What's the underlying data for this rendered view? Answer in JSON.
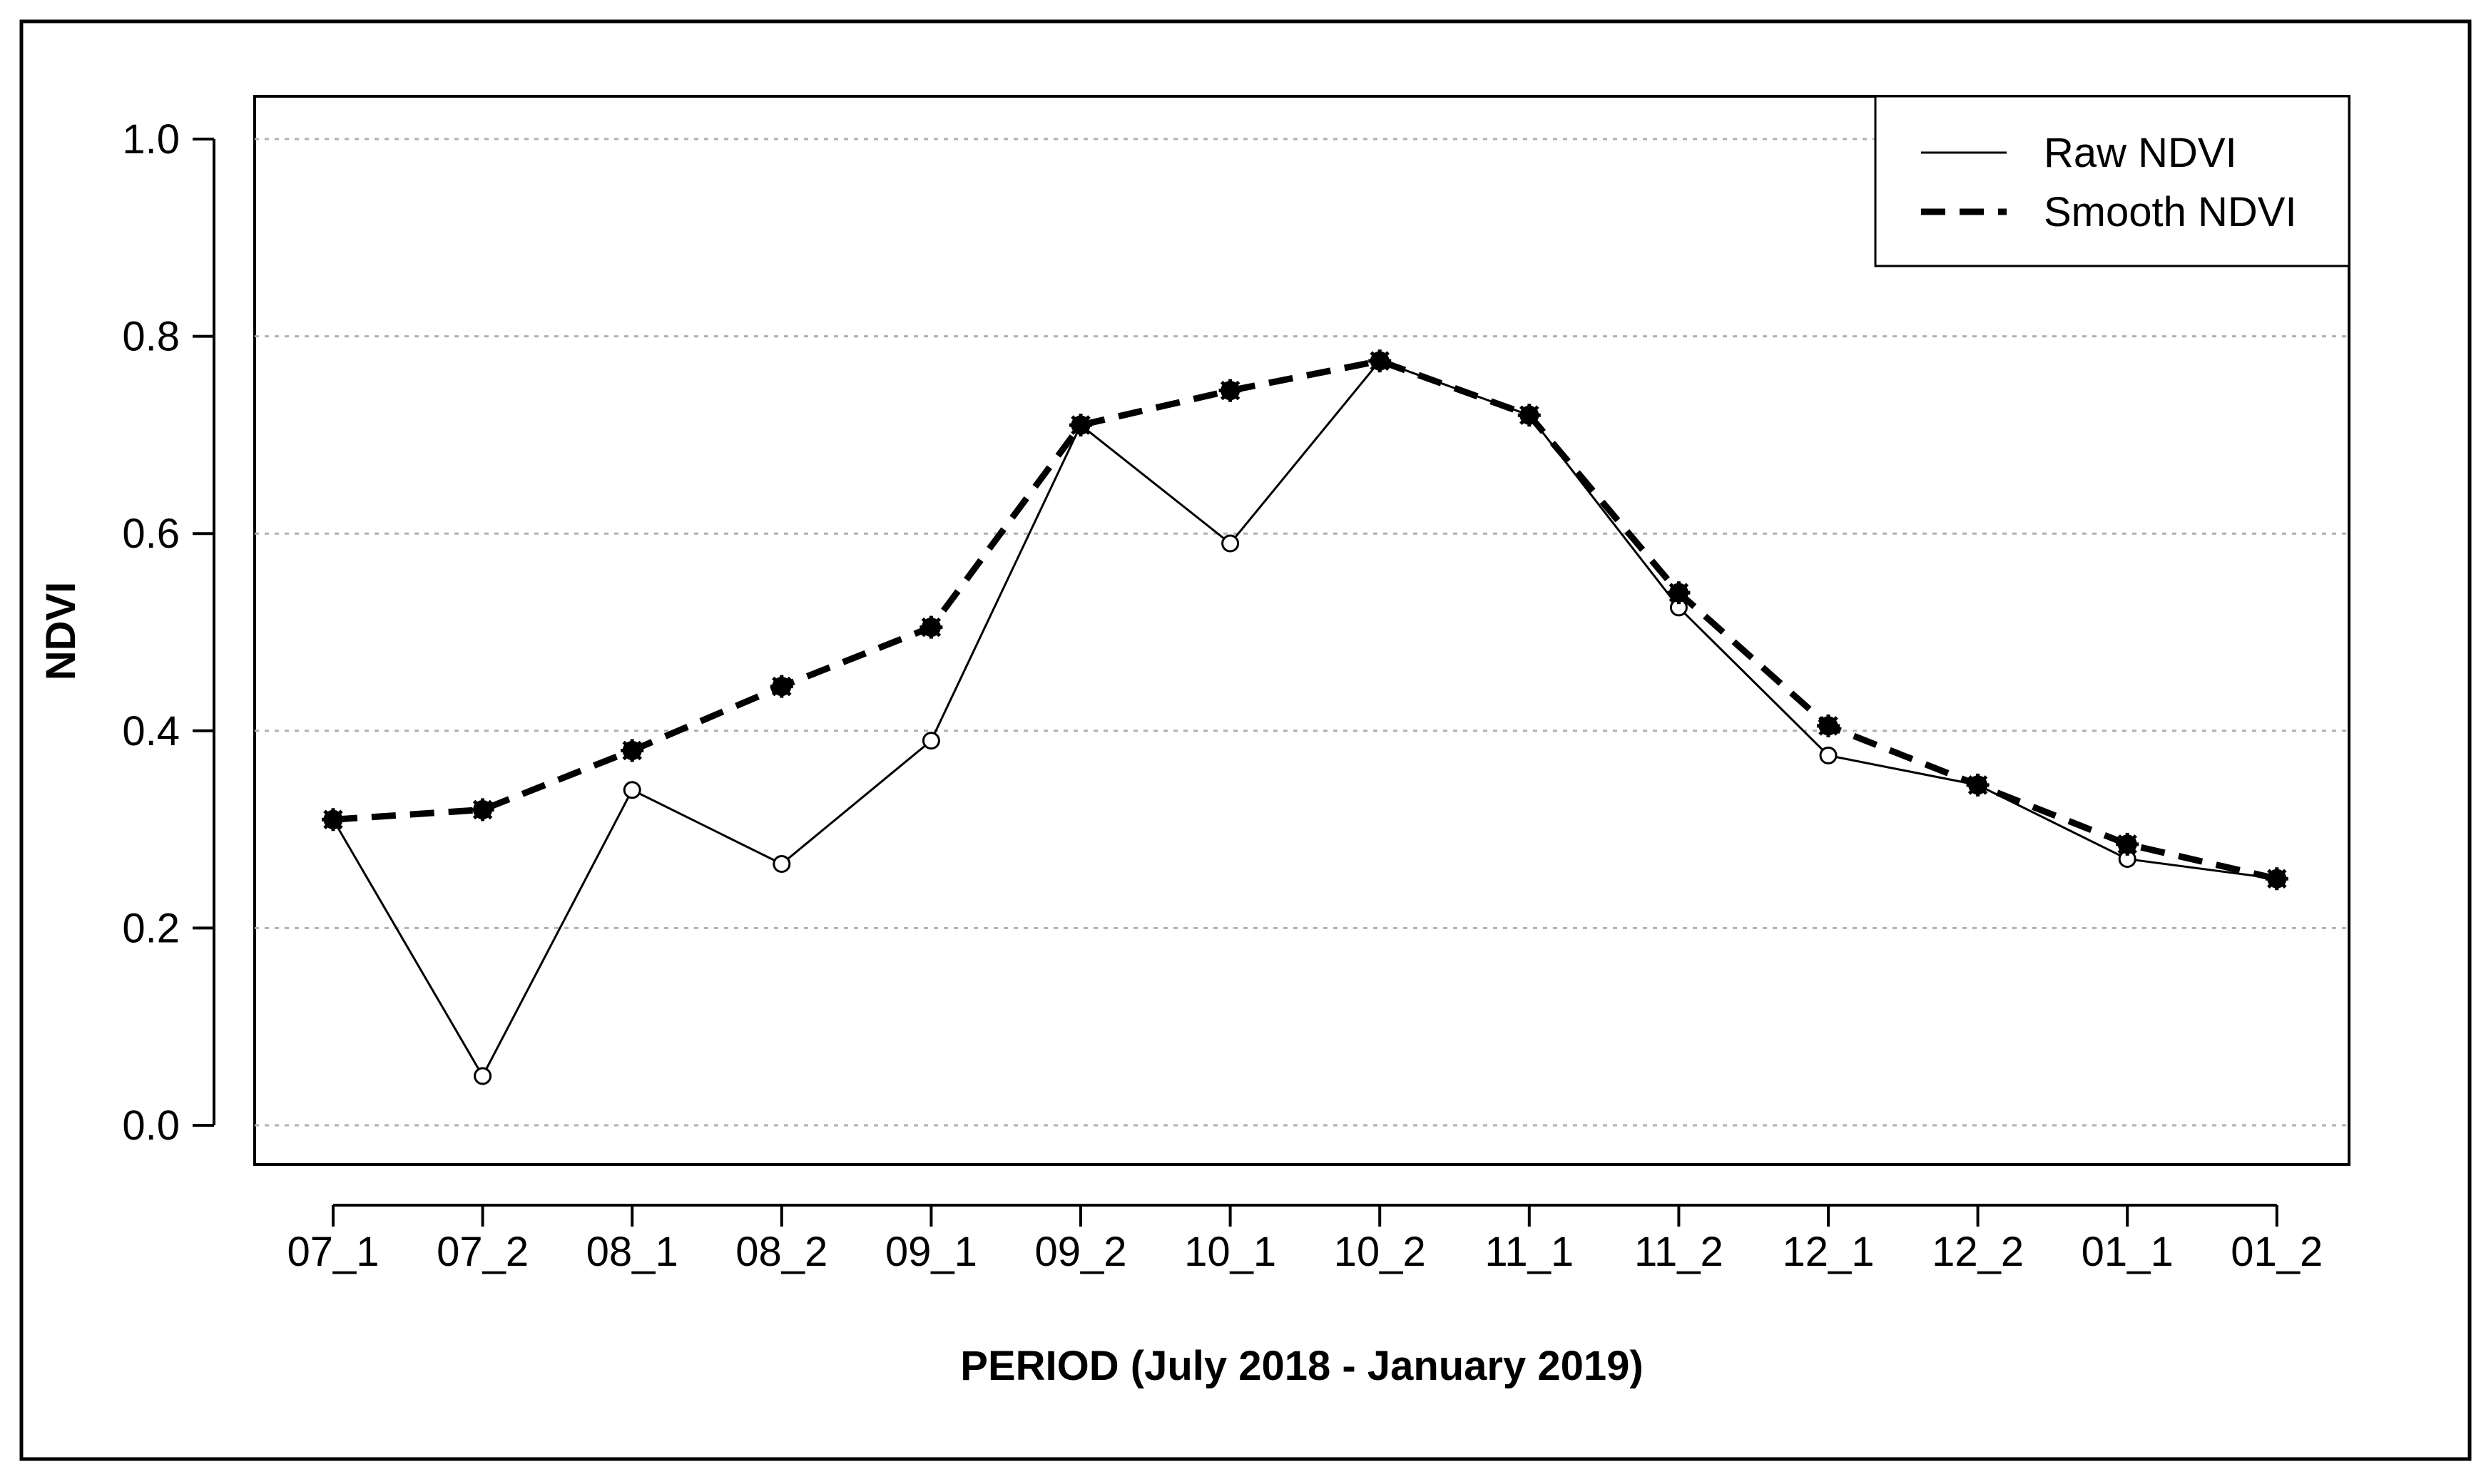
{
  "chart_data": {
    "type": "line",
    "title": "",
    "xlabel": "PERIOD (July 2018 - January 2019)",
    "ylabel": "NDVI",
    "categories": [
      "07_1",
      "07_2",
      "08_1",
      "08_2",
      "09_1",
      "09_2",
      "10_1",
      "10_2",
      "11_1",
      "11_2",
      "12_1",
      "12_2",
      "01_1",
      "01_2"
    ],
    "yticks": [
      "0.0",
      "0.2",
      "0.4",
      "0.6",
      "0.8",
      "1.0"
    ],
    "ylim": [
      0,
      1.0
    ],
    "grid": "horizontal dotted",
    "legend_position": "top-right",
    "series": [
      {
        "name": "Raw NDVI",
        "style": "solid-thin-open-circles",
        "color": "#000000",
        "values": [
          0.31,
          0.05,
          0.34,
          0.265,
          0.39,
          0.71,
          0.59,
          0.775,
          0.72,
          0.525,
          0.375,
          0.345,
          0.27,
          0.25
        ]
      },
      {
        "name": "Smooth NDVI",
        "style": "dashed-thick-filled-points",
        "color": "#000000",
        "values": [
          0.31,
          0.32,
          0.38,
          0.445,
          0.505,
          0.71,
          0.745,
          0.775,
          0.72,
          0.54,
          0.405,
          0.345,
          0.285,
          0.25
        ]
      }
    ]
  }
}
